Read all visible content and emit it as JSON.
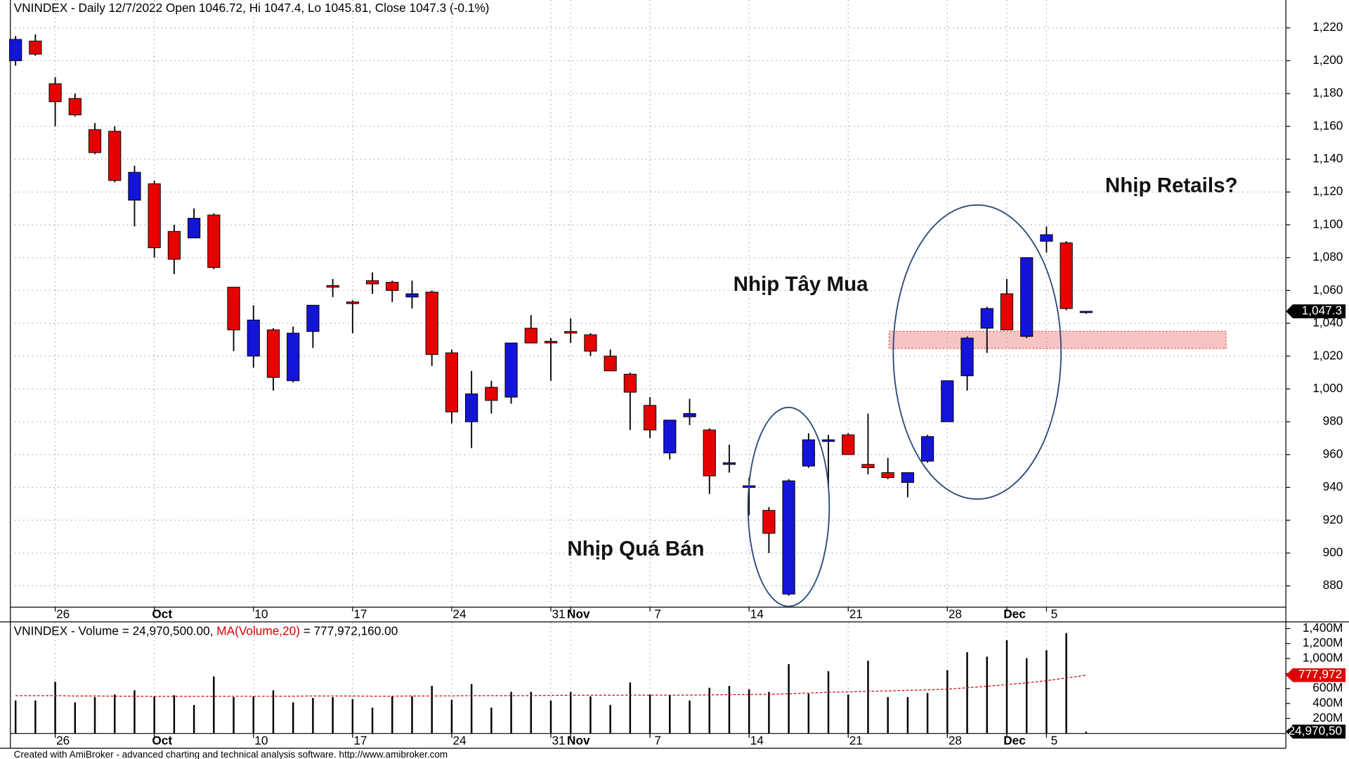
{
  "chart_data": [
    {
      "type": "candlestick",
      "title": "VNINDEX - Daily 12/7/2022 Open 1046.72, Hi 1047.4, Lo 1045.81, Close 1047.3 (-0.1%)",
      "categories": [
        null,
        null,
        "26",
        null,
        null,
        null,
        null,
        "Oct",
        null,
        null,
        null,
        null,
        "10",
        null,
        null,
        null,
        null,
        "17",
        null,
        null,
        null,
        null,
        "24",
        null,
        null,
        null,
        null,
        "31",
        "Nov",
        null,
        null,
        null,
        "7",
        null,
        null,
        null,
        null,
        "14",
        null,
        null,
        null,
        null,
        "21",
        null,
        null,
        null,
        null,
        "28",
        null,
        null,
        "Dec",
        null,
        "5",
        null,
        null
      ],
      "open": [
        1200,
        1212,
        1186,
        1177,
        1158,
        1157,
        1115,
        1125,
        1096,
        1092,
        1106,
        1062,
        1020,
        1036,
        1005,
        1035,
        1063,
        1053,
        1066,
        1065,
        1056,
        1059,
        1022,
        980,
        1001,
        995,
        1037,
        1029,
        1035,
        1033,
        1020,
        1009,
        990,
        961,
        983,
        975,
        954,
        940,
        926,
        875,
        953,
        968,
        972,
        954,
        949,
        943,
        956,
        980,
        1008,
        1037,
        1058,
        1032,
        1090,
        1089,
        1046.72
      ],
      "high": [
        1215,
        1216,
        1190,
        1180,
        1162,
        1160,
        1136,
        1127,
        1100,
        1110,
        1107,
        1062,
        1051,
        1037,
        1038,
        1051,
        1067,
        1054,
        1071,
        1066,
        1066,
        1060,
        1024,
        1011,
        1005,
        1028,
        1045,
        1031,
        1043,
        1034,
        1024,
        1010,
        995,
        981,
        994,
        976,
        966,
        946,
        928,
        945,
        973,
        972,
        973,
        985,
        958,
        949,
        972,
        1005,
        1032,
        1050,
        1067,
        1080,
        1099,
        1090,
        1047.4
      ],
      "low": [
        1197,
        1203,
        1160,
        1166,
        1143,
        1126,
        1099,
        1080,
        1070,
        1092,
        1073,
        1023,
        1013,
        999,
        1004,
        1025,
        1056,
        1034,
        1058,
        1053,
        1049,
        1014,
        979,
        964,
        985,
        991,
        1028,
        1005,
        1028,
        1020,
        1011,
        975,
        970,
        957,
        978,
        936,
        949,
        923,
        900,
        874,
        952,
        940,
        960,
        948,
        945,
        934,
        955,
        980,
        999,
        1022,
        1036,
        1031,
        1083,
        1048,
        1045.81
      ],
      "close": [
        1213,
        1204,
        1175,
        1167,
        1144,
        1127,
        1132,
        1086,
        1079,
        1104,
        1074,
        1036,
        1042,
        1007,
        1034,
        1051,
        1062,
        1052,
        1064,
        1060,
        1058,
        1021,
        986,
        997,
        993,
        1028,
        1028,
        1028,
        1034,
        1023,
        1011,
        998,
        975,
        981,
        985,
        947,
        955,
        941,
        912,
        944,
        969,
        969,
        960,
        952,
        946,
        949,
        971,
        1005,
        1031,
        1049,
        1036,
        1080,
        1094,
        1049,
        1047.3
      ],
      "up_color": "#1414d8",
      "down_color": "#e60000",
      "ylim": [
        867,
        1237
      ],
      "yticks": [
        880,
        900,
        920,
        940,
        960,
        980,
        {
          "value": 1000,
          "label": "1,000"
        },
        {
          "value": 1020,
          "label": "1,020"
        },
        {
          "value": 1040,
          "label": "1,040"
        },
        {
          "value": 1060,
          "label": "1,060"
        },
        {
          "value": 1080,
          "label": "1,080"
        },
        {
          "value": 1100,
          "label": "1,100"
        },
        {
          "value": 1120,
          "label": "1,120"
        },
        {
          "value": 1140,
          "label": "1,140"
        },
        {
          "value": 1160,
          "label": "1,160"
        },
        {
          "value": 1180,
          "label": "1,180"
        },
        {
          "value": 1200,
          "label": "1,200"
        },
        {
          "value": 1220,
          "label": "1,220"
        }
      ],
      "grid": true,
      "last_label": "1,047.3",
      "annotations": [
        "Nhịp Retails?",
        "Nhịp Tây Mua",
        "Nhịp Quá Bán"
      ]
    },
    {
      "type": "bar",
      "title_parts": [
        "VNINDEX - Volume = 24,970,500.00, ",
        "MA(Volume,20)",
        " = 777,972,160.00"
      ],
      "values": [
        440,
        440,
        690,
        415,
        485,
        520,
        575,
        495,
        510,
        380,
        760,
        485,
        495,
        575,
        415,
        475,
        485,
        460,
        345,
        495,
        495,
        635,
        450,
        660,
        345,
        555,
        555,
        440,
        555,
        495,
        380,
        680,
        520,
        510,
        440,
        610,
        635,
        590,
        555,
        925,
        530,
        830,
        520,
        970,
        485,
        485,
        540,
        845,
        1085,
        1025,
        1245,
        1005,
        1110,
        1340,
        24.9705
      ],
      "color": "#000000",
      "ma": {
        "name": "MA(Volume,20)",
        "color": "#d40000",
        "values": [
          505,
          505,
          505,
          500,
          500,
          498,
          497,
          495,
          495,
          495,
          495,
          497,
          497,
          497,
          498,
          500,
          500,
          500,
          498,
          498,
          500,
          500,
          502,
          505,
          505,
          505,
          505,
          508,
          510,
          510,
          510,
          512,
          512,
          512,
          512,
          515,
          518,
          520,
          522,
          530,
          540,
          550,
          555,
          562,
          568,
          575,
          582,
          592,
          610,
          630,
          652,
          675,
          705,
          740,
          777.97216
        ]
      },
      "ylim": [
        0,
        1477
      ],
      "yticks": [
        {
          "value": 200,
          "label": "200M"
        },
        {
          "value": 400,
          "label": "400M"
        },
        {
          "value": 600,
          "label": "600M"
        },
        {
          "value": 800,
          "label": "800M"
        },
        {
          "value": 1000,
          "label": "1,000M"
        },
        {
          "value": 1200,
          "label": "1,200M"
        },
        {
          "value": 1400,
          "label": "1,400M"
        }
      ],
      "ma_label": "777,972",
      "last_label": "24,970,50"
    }
  ],
  "footer": "Created with AmiBroker - advanced charting and technical analysis software. http://www.amibroker.com"
}
